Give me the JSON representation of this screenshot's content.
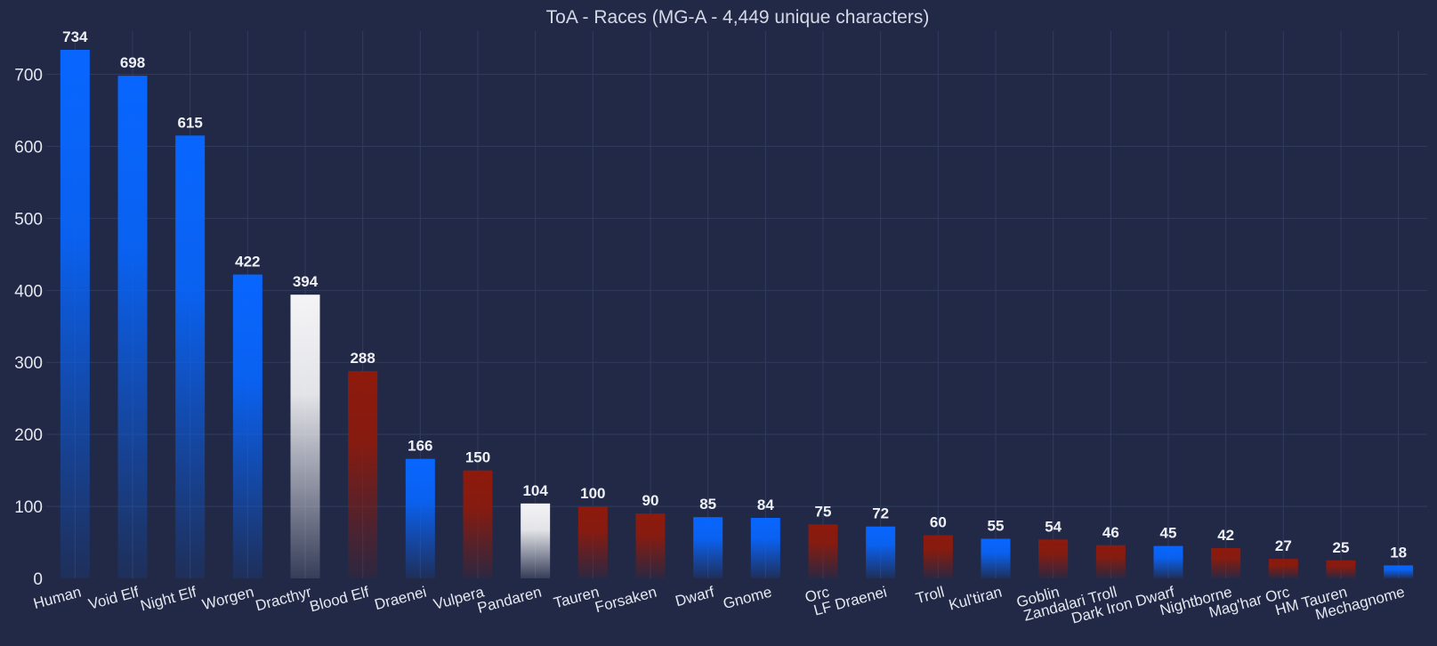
{
  "chart_data": {
    "type": "bar",
    "title": "ToA - Races (MG-A - 4,449 unique characters)",
    "xlabel": "",
    "ylabel": "",
    "ylim": [
      0,
      760
    ],
    "yticks": [
      0,
      100,
      200,
      300,
      400,
      500,
      600,
      700
    ],
    "grid": true,
    "categories": [
      "Human",
      "Void Elf",
      "Night Elf",
      "Worgen",
      "Dracthyr",
      "Blood Elf",
      "Draenei",
      "Vulpera",
      "Pandaren",
      "Tauren",
      "Forsaken",
      "Dwarf",
      "Gnome",
      "Orc",
      "LF Draenei",
      "Troll",
      "Kul'tiran",
      "Goblin",
      "Zandalari Troll",
      "Dark Iron Dwarf",
      "Nightborne",
      "Mag'har Orc",
      "HM Tauren",
      "Mechagnome"
    ],
    "values": [
      734,
      698,
      615,
      422,
      394,
      288,
      166,
      150,
      104,
      100,
      90,
      85,
      84,
      75,
      72,
      60,
      55,
      54,
      46,
      45,
      42,
      27,
      25,
      18
    ],
    "bar_faction": [
      "alliance",
      "alliance",
      "alliance",
      "alliance",
      "neutral",
      "horde",
      "alliance",
      "horde",
      "neutral",
      "horde",
      "horde",
      "alliance",
      "alliance",
      "horde",
      "alliance",
      "horde",
      "alliance",
      "horde",
      "horde",
      "alliance",
      "horde",
      "horde",
      "horde",
      "alliance"
    ],
    "colors": {
      "alliance": "#0866ff",
      "horde": "#8e1a0c",
      "neutral": "#f4f4f6"
    }
  }
}
